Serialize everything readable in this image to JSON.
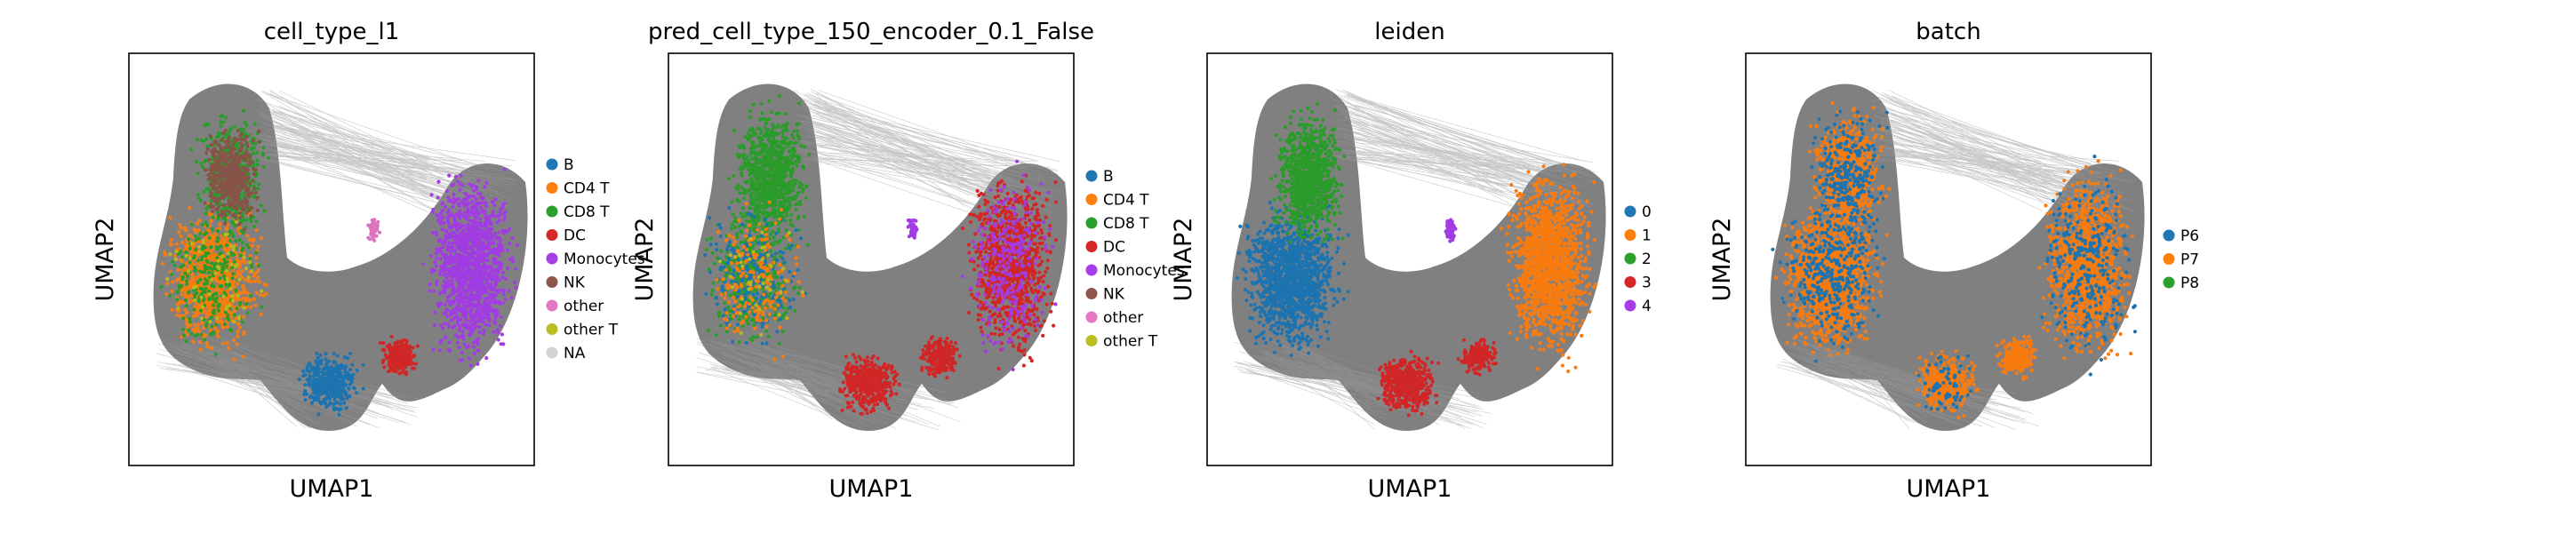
{
  "chart_data": [
    {
      "type": "scatter",
      "title": "cell_type_l1",
      "xlabel": "UMAP1",
      "ylabel": "UMAP2",
      "legend_placement": "right",
      "grid": false,
      "series": [
        {
          "name": "B",
          "color": "#1f77b4"
        },
        {
          "name": "CD4 T",
          "color": "#ff7f0e"
        },
        {
          "name": "CD8 T",
          "color": "#2ca02c"
        },
        {
          "name": "DC",
          "color": "#d62728"
        },
        {
          "name": "Monocytes",
          "color": "#a63ee8"
        },
        {
          "name": "NK",
          "color": "#8c564b"
        },
        {
          "name": "other",
          "color": "#e377c2"
        },
        {
          "name": "other T",
          "color": "#bcbd22"
        },
        {
          "name": "NA",
          "color": "#d3d3d3"
        }
      ]
    },
    {
      "type": "scatter",
      "title": "pred_cell_type_150_encoder_0.1_False",
      "xlabel": "UMAP1",
      "ylabel": "UMAP2",
      "legend_placement": "right",
      "grid": false,
      "series": [
        {
          "name": "B",
          "color": "#1f77b4"
        },
        {
          "name": "CD4 T",
          "color": "#ff7f0e"
        },
        {
          "name": "CD8 T",
          "color": "#2ca02c"
        },
        {
          "name": "DC",
          "color": "#d62728"
        },
        {
          "name": "Monocytes",
          "color": "#a63ee8"
        },
        {
          "name": "NK",
          "color": "#8c564b"
        },
        {
          "name": "other",
          "color": "#e377c2"
        },
        {
          "name": "other T",
          "color": "#bcbd22"
        }
      ]
    },
    {
      "type": "scatter",
      "title": "leiden",
      "xlabel": "UMAP1",
      "ylabel": "UMAP2",
      "legend_placement": "right",
      "grid": false,
      "series": [
        {
          "name": "0",
          "color": "#1f77b4"
        },
        {
          "name": "1",
          "color": "#ff7f0e"
        },
        {
          "name": "2",
          "color": "#2ca02c"
        },
        {
          "name": "3",
          "color": "#d62728"
        },
        {
          "name": "4",
          "color": "#a63ee8"
        }
      ]
    },
    {
      "type": "scatter",
      "title": "batch",
      "xlabel": "UMAP1",
      "ylabel": "UMAP2",
      "legend_placement": "right",
      "grid": false,
      "series": [
        {
          "name": "P6",
          "color": "#1f77b4"
        },
        {
          "name": "P7",
          "color": "#ff7f0e"
        },
        {
          "name": "P8",
          "color": "#2ca02c"
        }
      ]
    }
  ],
  "colors": {
    "background_embedding": "#808080",
    "graph_edges": "#9a9a9a"
  }
}
